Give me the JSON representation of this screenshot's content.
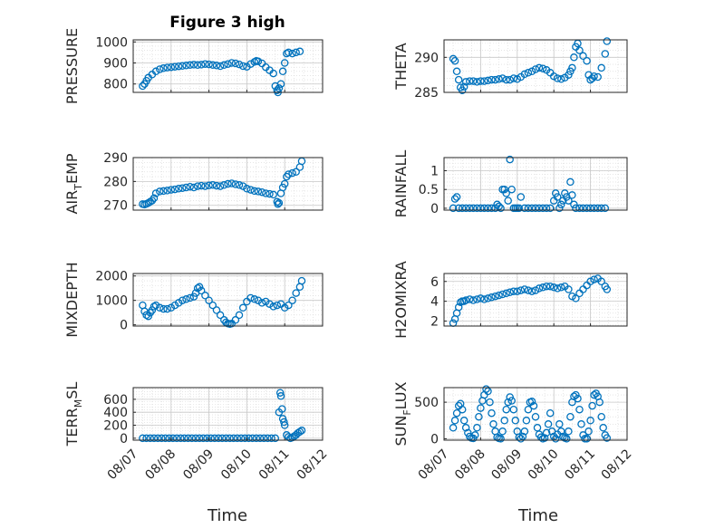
{
  "figure": {
    "title": "Figure 3 high",
    "marker_color": "#0072BD"
  },
  "x_axis": {
    "label": "Time",
    "ticks": [
      "08/07",
      "08/08",
      "08/09",
      "08/10",
      "08/11",
      "08/12"
    ],
    "range_days": [
      7,
      12
    ]
  },
  "chart_data": [
    {
      "type": "scatter",
      "ylabel_main": "PRESSURE",
      "ylabel_sub": "",
      "ylim": [
        760,
        1010
      ],
      "yticks": [
        800,
        900,
        1000
      ],
      "grid": true,
      "x_days": [
        7.25,
        7.3,
        7.35,
        7.4,
        7.5,
        7.6,
        7.7,
        7.8,
        7.9,
        8.0,
        8.1,
        8.2,
        8.3,
        8.4,
        8.5,
        8.6,
        8.7,
        8.8,
        8.9,
        9.0,
        9.1,
        9.2,
        9.3,
        9.4,
        9.5,
        9.6,
        9.7,
        9.8,
        9.9,
        10.0,
        10.1,
        10.2,
        10.25,
        10.3,
        10.4,
        10.5,
        10.6,
        10.7,
        10.75,
        10.8,
        10.82,
        10.85,
        10.9,
        10.95,
        11.0,
        11.05,
        11.1,
        11.2,
        11.3,
        11.4
      ],
      "y": [
        790,
        800,
        815,
        830,
        845,
        860,
        870,
        875,
        878,
        880,
        882,
        884,
        886,
        888,
        890,
        892,
        890,
        892,
        895,
        893,
        890,
        888,
        885,
        890,
        895,
        900,
        898,
        893,
        885,
        882,
        895,
        905,
        910,
        908,
        898,
        880,
        865,
        850,
        790,
        770,
        760,
        780,
        800,
        860,
        900,
        945,
        950,
        945,
        950,
        955
      ]
    },
    {
      "type": "scatter",
      "ylabel_main": "THETA",
      "ylabel_sub": "",
      "ylim": [
        285,
        292.5
      ],
      "yticks": [
        285,
        290
      ],
      "grid": true,
      "x_days": [
        7.25,
        7.3,
        7.35,
        7.4,
        7.45,
        7.5,
        7.55,
        7.6,
        7.7,
        7.8,
        7.9,
        8.0,
        8.1,
        8.2,
        8.3,
        8.4,
        8.5,
        8.6,
        8.7,
        8.8,
        8.9,
        9.0,
        9.1,
        9.2,
        9.3,
        9.4,
        9.5,
        9.6,
        9.7,
        9.8,
        9.9,
        10.0,
        10.1,
        10.2,
        10.3,
        10.4,
        10.45,
        10.5,
        10.55,
        10.6,
        10.65,
        10.7,
        10.8,
        10.9,
        10.95,
        11.0,
        11.05,
        11.1,
        11.2,
        11.3,
        11.4,
        11.45
      ],
      "y": [
        289.8,
        289.5,
        288,
        286.8,
        285.7,
        285.3,
        285.8,
        286.5,
        286.6,
        286.6,
        286.5,
        286.6,
        286.6,
        286.7,
        286.8,
        286.8,
        286.9,
        287.0,
        286.8,
        286.8,
        287.0,
        286.9,
        287.2,
        287.6,
        287.8,
        288.0,
        288.3,
        288.5,
        288.4,
        288.2,
        287.8,
        287.3,
        287.0,
        286.9,
        287.1,
        287.5,
        288,
        288.5,
        290,
        291.5,
        292,
        291,
        290.2,
        289.5,
        287.5,
        286.8,
        287,
        287.3,
        287.2,
        288.5,
        290.5,
        292.3
      ]
    },
    {
      "type": "scatter",
      "ylabel_main": "AIR",
      "ylabel_sub": "T",
      "ylabel_tail": "EMP",
      "ylim": [
        268,
        290
      ],
      "yticks": [
        270,
        280,
        290
      ],
      "grid": true,
      "x_days": [
        7.25,
        7.3,
        7.35,
        7.4,
        7.45,
        7.5,
        7.55,
        7.6,
        7.7,
        7.8,
        7.9,
        8.0,
        8.1,
        8.2,
        8.3,
        8.4,
        8.5,
        8.6,
        8.7,
        8.8,
        8.9,
        9.0,
        9.1,
        9.2,
        9.3,
        9.4,
        9.5,
        9.6,
        9.7,
        9.8,
        9.9,
        10.0,
        10.1,
        10.2,
        10.3,
        10.4,
        10.5,
        10.6,
        10.7,
        10.8,
        10.82,
        10.85,
        10.9,
        10.95,
        11.0,
        11.05,
        11.1,
        11.2,
        11.3,
        11.4,
        11.45
      ],
      "y": [
        270.5,
        270.3,
        270.6,
        271.0,
        271.5,
        272.0,
        273.0,
        275.0,
        275.8,
        276.0,
        276.2,
        276.5,
        276.7,
        277.0,
        277.2,
        277.5,
        277.8,
        277.5,
        278.0,
        278.2,
        278.0,
        278.3,
        278.5,
        278.2,
        278.0,
        278.5,
        279.0,
        279.2,
        278.8,
        278.5,
        278.0,
        277.0,
        276.5,
        276.0,
        275.8,
        275.5,
        275.0,
        274.8,
        274.5,
        271.5,
        270.5,
        271.0,
        275.0,
        277.5,
        279.0,
        282.0,
        283.0,
        283.5,
        284.0,
        286.0,
        288.5
      ]
    },
    {
      "type": "scatter",
      "ylabel_main": "RAINFALL",
      "ylabel_sub": "",
      "ylim": [
        -0.05,
        1.35
      ],
      "yticks": [
        0,
        0.5,
        1
      ],
      "grid": true,
      "x_days": [
        7.25,
        7.3,
        7.35,
        7.4,
        7.5,
        7.6,
        7.7,
        7.8,
        7.9,
        8.0,
        8.1,
        8.2,
        8.3,
        8.4,
        8.45,
        8.5,
        8.55,
        8.6,
        8.65,
        8.7,
        8.75,
        8.8,
        8.85,
        8.9,
        8.95,
        9.0,
        9.05,
        9.1,
        9.2,
        9.3,
        9.4,
        9.5,
        9.6,
        9.7,
        9.8,
        9.9,
        10.0,
        10.05,
        10.1,
        10.15,
        10.2,
        10.25,
        10.3,
        10.35,
        10.4,
        10.45,
        10.5,
        10.55,
        10.6,
        10.7,
        10.8,
        10.9,
        11.0,
        11.1,
        11.2,
        11.3,
        11.4
      ],
      "y": [
        0,
        0.25,
        0.3,
        0,
        0,
        0,
        0,
        0,
        0,
        0,
        0,
        0,
        0,
        0,
        0.1,
        0.05,
        0,
        0.5,
        0.5,
        0.4,
        0.2,
        1.3,
        0.5,
        0,
        0,
        0,
        0,
        0.3,
        0,
        0,
        0,
        0,
        0,
        0,
        0,
        0,
        0.2,
        0.4,
        0.3,
        0,
        0.1,
        0.2,
        0.4,
        0.3,
        0.2,
        0.7,
        0.35,
        0.1,
        0,
        0,
        0,
        0,
        0,
        0,
        0,
        0,
        0
      ]
    },
    {
      "type": "scatter",
      "ylabel_main": "MIXDEPTH",
      "ylabel_sub": "",
      "ylim": [
        -50,
        2100
      ],
      "yticks": [
        0,
        1000,
        2000
      ],
      "grid": true,
      "x_days": [
        7.25,
        7.3,
        7.35,
        7.4,
        7.45,
        7.5,
        7.55,
        7.6,
        7.7,
        7.8,
        7.9,
        8.0,
        8.1,
        8.2,
        8.3,
        8.4,
        8.5,
        8.6,
        8.65,
        8.7,
        8.75,
        8.8,
        8.9,
        9.0,
        9.1,
        9.2,
        9.3,
        9.4,
        9.45,
        9.5,
        9.55,
        9.6,
        9.7,
        9.8,
        9.9,
        10.0,
        10.1,
        10.2,
        10.3,
        10.4,
        10.5,
        10.6,
        10.7,
        10.8,
        10.9,
        11.0,
        11.1,
        11.2,
        11.3,
        11.4,
        11.45
      ],
      "y": [
        800,
        550,
        400,
        350,
        500,
        600,
        750,
        800,
        700,
        650,
        650,
        700,
        800,
        900,
        1000,
        1050,
        1100,
        1150,
        1300,
        1500,
        1550,
        1400,
        1200,
        1000,
        800,
        600,
        400,
        200,
        100,
        50,
        30,
        50,
        200,
        400,
        700,
        950,
        1100,
        1050,
        1000,
        900,
        950,
        850,
        750,
        800,
        850,
        700,
        800,
        1000,
        1300,
        1550,
        1800
      ]
    },
    {
      "type": "scatter",
      "ylabel_main": "H2OMIXRA",
      "ylabel_sub": "",
      "ylim": [
        1.5,
        6.8
      ],
      "yticks": [
        2,
        4,
        6
      ],
      "grid": true,
      "x_days": [
        7.25,
        7.3,
        7.35,
        7.4,
        7.45,
        7.5,
        7.55,
        7.6,
        7.7,
        7.8,
        7.9,
        8.0,
        8.1,
        8.2,
        8.3,
        8.4,
        8.5,
        8.6,
        8.7,
        8.8,
        8.9,
        9.0,
        9.1,
        9.2,
        9.3,
        9.4,
        9.5,
        9.6,
        9.7,
        9.8,
        9.9,
        10.0,
        10.1,
        10.2,
        10.3,
        10.4,
        10.5,
        10.6,
        10.7,
        10.8,
        10.9,
        11.0,
        11.1,
        11.2,
        11.3,
        11.4,
        11.45
      ],
      "y": [
        1.8,
        2.2,
        2.8,
        3.4,
        3.9,
        4.0,
        4.0,
        4.1,
        4.2,
        4.1,
        4.2,
        4.3,
        4.2,
        4.3,
        4.4,
        4.5,
        4.6,
        4.7,
        4.8,
        4.9,
        5.0,
        5.0,
        5.1,
        5.2,
        5.1,
        5.0,
        5.1,
        5.3,
        5.4,
        5.5,
        5.5,
        5.4,
        5.3,
        5.4,
        5.5,
        5.2,
        4.5,
        4.3,
        4.8,
        5.2,
        5.6,
        6.0,
        6.2,
        6.3,
        6.0,
        5.5,
        5.2
      ]
    },
    {
      "type": "scatter",
      "ylabel_main": "TERR",
      "ylabel_sub": "M",
      "ylabel_tail": "SL",
      "ylim": [
        -30,
        780
      ],
      "yticks": [
        0,
        200,
        400,
        600
      ],
      "grid": true,
      "x_days": [
        7.25,
        7.35,
        7.45,
        7.55,
        7.65,
        7.75,
        7.85,
        7.95,
        8.05,
        8.15,
        8.25,
        8.35,
        8.45,
        8.55,
        8.65,
        8.75,
        8.85,
        8.95,
        9.05,
        9.15,
        9.25,
        9.35,
        9.45,
        9.55,
        9.65,
        9.75,
        9.85,
        9.95,
        10.05,
        10.15,
        10.25,
        10.35,
        10.45,
        10.55,
        10.65,
        10.75,
        10.85,
        10.88,
        10.9,
        10.93,
        10.95,
        10.98,
        11.0,
        11.05,
        11.1,
        11.15,
        11.2,
        11.25,
        11.3,
        11.35,
        11.4,
        11.45
      ],
      "y": [
        0,
        0,
        0,
        0,
        0,
        0,
        0,
        0,
        0,
        0,
        0,
        0,
        0,
        0,
        0,
        0,
        0,
        0,
        0,
        0,
        0,
        0,
        0,
        0,
        0,
        0,
        0,
        0,
        0,
        0,
        0,
        0,
        0,
        0,
        0,
        0,
        400,
        700,
        650,
        450,
        300,
        250,
        200,
        50,
        20,
        0,
        10,
        30,
        50,
        80,
        100,
        120
      ]
    },
    {
      "type": "scatter",
      "ylabel_main": "SUN",
      "ylabel_sub": "F",
      "ylabel_tail": "LUX",
      "ylim": [
        -20,
        700
      ],
      "yticks": [
        0,
        500
      ],
      "grid": true,
      "x_days": [
        7.25,
        7.3,
        7.35,
        7.4,
        7.45,
        7.5,
        7.55,
        7.6,
        7.65,
        7.7,
        7.75,
        7.8,
        7.85,
        7.9,
        7.95,
        8.0,
        8.05,
        8.1,
        8.15,
        8.2,
        8.25,
        8.3,
        8.35,
        8.4,
        8.45,
        8.5,
        8.55,
        8.6,
        8.65,
        8.7,
        8.75,
        8.8,
        8.85,
        8.9,
        8.95,
        9.0,
        9.05,
        9.1,
        9.15,
        9.2,
        9.25,
        9.3,
        9.35,
        9.4,
        9.45,
        9.5,
        9.55,
        9.6,
        9.65,
        9.7,
        9.75,
        9.8,
        9.85,
        9.9,
        9.95,
        10.0,
        10.05,
        10.1,
        10.15,
        10.2,
        10.25,
        10.3,
        10.35,
        10.4,
        10.45,
        10.5,
        10.55,
        10.6,
        10.65,
        10.7,
        10.75,
        10.8,
        10.85,
        10.9,
        10.95,
        11.0,
        11.05,
        11.1,
        11.15,
        11.2,
        11.25,
        11.3,
        11.35,
        11.4,
        11.45
      ],
      "y": [
        150,
        250,
        350,
        450,
        480,
        400,
        250,
        150,
        80,
        30,
        10,
        5,
        50,
        150,
        300,
        420,
        520,
        600,
        680,
        650,
        500,
        350,
        200,
        100,
        20,
        5,
        0,
        100,
        250,
        400,
        500,
        570,
        520,
        400,
        250,
        100,
        20,
        0,
        30,
        100,
        250,
        400,
        500,
        510,
        450,
        300,
        150,
        60,
        20,
        0,
        10,
        80,
        200,
        350,
        100,
        30,
        0,
        60,
        200,
        100,
        30,
        10,
        0,
        100,
        300,
        500,
        580,
        600,
        550,
        400,
        200,
        50,
        0,
        0,
        100,
        250,
        450,
        600,
        620,
        580,
        500,
        300,
        150,
        50,
        10
      ]
    }
  ]
}
